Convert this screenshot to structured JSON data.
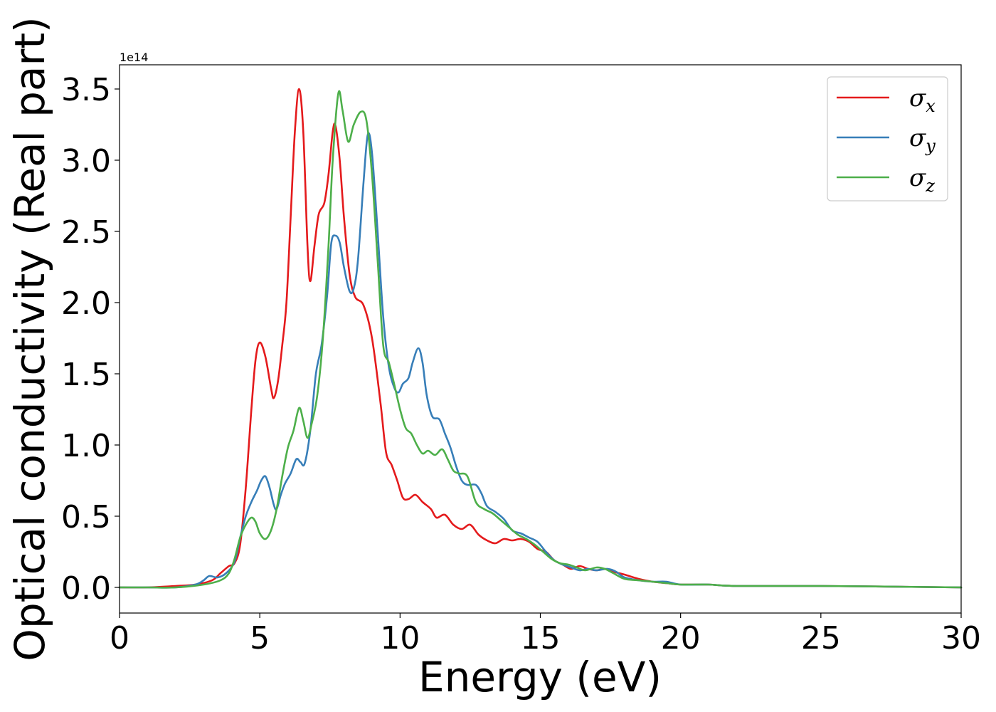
{
  "chart_data": {
    "type": "line",
    "title": "",
    "xlabel": "Energy (eV)",
    "ylabel": "Optical conductivity (Real part)",
    "y_offset_label": "1e14",
    "xlim": [
      0,
      30
    ],
    "ylim": [
      -0.18,
      3.67
    ],
    "x_ticks": [
      0,
      5,
      10,
      15,
      20,
      25,
      30
    ],
    "x_tick_labels": [
      "0",
      "5",
      "10",
      "15",
      "20",
      "25",
      "30"
    ],
    "y_ticks": [
      0.0,
      0.5,
      1.0,
      1.5,
      2.0,
      2.5,
      3.0,
      3.5
    ],
    "y_tick_labels": [
      "0.0",
      "0.5",
      "1.0",
      "1.5",
      "2.0",
      "2.5",
      "3.0",
      "3.5"
    ],
    "grid": false,
    "legend_position": "top-right",
    "series": [
      {
        "name": "σx",
        "legend_base": "σ",
        "legend_sub": "x",
        "color": "#e41a1c",
        "points": [
          [
            0,
            0
          ],
          [
            1,
            0
          ],
          [
            2,
            0.01
          ],
          [
            2.7,
            0.02
          ],
          [
            3.3,
            0.05
          ],
          [
            3.6,
            0.1
          ],
          [
            3.9,
            0.15
          ],
          [
            4.1,
            0.17
          ],
          [
            4.3,
            0.3
          ],
          [
            4.5,
            0.7
          ],
          [
            4.7,
            1.25
          ],
          [
            4.85,
            1.6
          ],
          [
            5.0,
            1.72
          ],
          [
            5.2,
            1.62
          ],
          [
            5.4,
            1.4
          ],
          [
            5.5,
            1.33
          ],
          [
            5.65,
            1.45
          ],
          [
            5.8,
            1.7
          ],
          [
            5.95,
            2.0
          ],
          [
            6.1,
            2.6
          ],
          [
            6.25,
            3.2
          ],
          [
            6.4,
            3.5
          ],
          [
            6.55,
            3.2
          ],
          [
            6.7,
            2.4
          ],
          [
            6.8,
            2.15
          ],
          [
            6.95,
            2.4
          ],
          [
            7.1,
            2.62
          ],
          [
            7.3,
            2.7
          ],
          [
            7.45,
            2.9
          ],
          [
            7.6,
            3.2
          ],
          [
            7.7,
            3.24
          ],
          [
            7.85,
            3.0
          ],
          [
            8.0,
            2.6
          ],
          [
            8.2,
            2.2
          ],
          [
            8.4,
            2.04
          ],
          [
            8.7,
            1.98
          ],
          [
            9.0,
            1.75
          ],
          [
            9.3,
            1.3
          ],
          [
            9.5,
            0.95
          ],
          [
            9.7,
            0.86
          ],
          [
            9.9,
            0.75
          ],
          [
            10.1,
            0.63
          ],
          [
            10.3,
            0.62
          ],
          [
            10.55,
            0.65
          ],
          [
            10.8,
            0.6
          ],
          [
            11.1,
            0.55
          ],
          [
            11.3,
            0.49
          ],
          [
            11.6,
            0.51
          ],
          [
            11.9,
            0.44
          ],
          [
            12.2,
            0.41
          ],
          [
            12.5,
            0.44
          ],
          [
            12.8,
            0.37
          ],
          [
            13.1,
            0.33
          ],
          [
            13.4,
            0.31
          ],
          [
            13.7,
            0.34
          ],
          [
            14.0,
            0.33
          ],
          [
            14.3,
            0.34
          ],
          [
            14.6,
            0.32
          ],
          [
            14.9,
            0.27
          ],
          [
            15.2,
            0.25
          ],
          [
            15.5,
            0.19
          ],
          [
            15.8,
            0.16
          ],
          [
            16.1,
            0.13
          ],
          [
            16.4,
            0.15
          ],
          [
            16.7,
            0.13
          ],
          [
            17.0,
            0.12
          ],
          [
            17.3,
            0.13
          ],
          [
            17.6,
            0.11
          ],
          [
            18.0,
            0.09
          ],
          [
            18.5,
            0.06
          ],
          [
            19.0,
            0.04
          ],
          [
            19.5,
            0.03
          ],
          [
            20,
            0.02
          ],
          [
            21,
            0.02
          ],
          [
            22,
            0.01
          ],
          [
            25,
            0.01
          ],
          [
            30,
            0
          ]
        ]
      },
      {
        "name": "σy",
        "legend_base": "σ",
        "legend_sub": "y",
        "color": "#377eb8",
        "points": [
          [
            0,
            0
          ],
          [
            1,
            0
          ],
          [
            2,
            0
          ],
          [
            2.7,
            0.02
          ],
          [
            3.0,
            0.05
          ],
          [
            3.2,
            0.08
          ],
          [
            3.5,
            0.07
          ],
          [
            3.8,
            0.1
          ],
          [
            4.1,
            0.18
          ],
          [
            4.3,
            0.35
          ],
          [
            4.5,
            0.5
          ],
          [
            4.7,
            0.6
          ],
          [
            4.9,
            0.68
          ],
          [
            5.05,
            0.75
          ],
          [
            5.2,
            0.78
          ],
          [
            5.35,
            0.7
          ],
          [
            5.5,
            0.58
          ],
          [
            5.6,
            0.55
          ],
          [
            5.75,
            0.65
          ],
          [
            5.9,
            0.73
          ],
          [
            6.1,
            0.8
          ],
          [
            6.3,
            0.9
          ],
          [
            6.45,
            0.88
          ],
          [
            6.6,
            0.87
          ],
          [
            6.8,
            1.1
          ],
          [
            7.0,
            1.5
          ],
          [
            7.2,
            1.7
          ],
          [
            7.4,
            2.05
          ],
          [
            7.55,
            2.42
          ],
          [
            7.7,
            2.47
          ],
          [
            7.85,
            2.42
          ],
          [
            8.0,
            2.25
          ],
          [
            8.2,
            2.08
          ],
          [
            8.35,
            2.1
          ],
          [
            8.5,
            2.3
          ],
          [
            8.7,
            2.85
          ],
          [
            8.85,
            3.18
          ],
          [
            9.0,
            3.05
          ],
          [
            9.2,
            2.5
          ],
          [
            9.4,
            1.9
          ],
          [
            9.6,
            1.55
          ],
          [
            9.8,
            1.4
          ],
          [
            9.95,
            1.37
          ],
          [
            10.1,
            1.43
          ],
          [
            10.3,
            1.47
          ],
          [
            10.45,
            1.58
          ],
          [
            10.65,
            1.68
          ],
          [
            10.8,
            1.58
          ],
          [
            10.95,
            1.35
          ],
          [
            11.15,
            1.2
          ],
          [
            11.4,
            1.18
          ],
          [
            11.6,
            1.08
          ],
          [
            11.8,
            0.98
          ],
          [
            12.0,
            0.85
          ],
          [
            12.2,
            0.75
          ],
          [
            12.4,
            0.72
          ],
          [
            12.7,
            0.72
          ],
          [
            12.9,
            0.66
          ],
          [
            13.1,
            0.57
          ],
          [
            13.4,
            0.53
          ],
          [
            13.7,
            0.48
          ],
          [
            14.0,
            0.4
          ],
          [
            14.3,
            0.38
          ],
          [
            14.6,
            0.35
          ],
          [
            14.9,
            0.32
          ],
          [
            15.2,
            0.25
          ],
          [
            15.5,
            0.19
          ],
          [
            15.8,
            0.16
          ],
          [
            16.1,
            0.14
          ],
          [
            16.4,
            0.12
          ],
          [
            16.7,
            0.13
          ],
          [
            17.0,
            0.12
          ],
          [
            17.4,
            0.13
          ],
          [
            17.7,
            0.11
          ],
          [
            18.0,
            0.07
          ],
          [
            18.5,
            0.05
          ],
          [
            19.0,
            0.04
          ],
          [
            19.5,
            0.04
          ],
          [
            20,
            0.02
          ],
          [
            21,
            0.02
          ],
          [
            22,
            0.01
          ],
          [
            25,
            0.01
          ],
          [
            30,
            0
          ]
        ]
      },
      {
        "name": "σz",
        "legend_base": "σ",
        "legend_sub": "z",
        "color": "#4daf4a",
        "points": [
          [
            0,
            0
          ],
          [
            1,
            0
          ],
          [
            2,
            0
          ],
          [
            3,
            0.02
          ],
          [
            3.6,
            0.05
          ],
          [
            3.9,
            0.1
          ],
          [
            4.1,
            0.2
          ],
          [
            4.3,
            0.35
          ],
          [
            4.5,
            0.44
          ],
          [
            4.7,
            0.49
          ],
          [
            4.85,
            0.46
          ],
          [
            5.0,
            0.38
          ],
          [
            5.2,
            0.34
          ],
          [
            5.4,
            0.4
          ],
          [
            5.6,
            0.55
          ],
          [
            5.8,
            0.78
          ],
          [
            6.0,
            0.98
          ],
          [
            6.2,
            1.1
          ],
          [
            6.4,
            1.26
          ],
          [
            6.55,
            1.17
          ],
          [
            6.7,
            1.05
          ],
          [
            6.85,
            1.15
          ],
          [
            7.05,
            1.35
          ],
          [
            7.25,
            1.75
          ],
          [
            7.45,
            2.4
          ],
          [
            7.6,
            3.0
          ],
          [
            7.8,
            3.47
          ],
          [
            7.95,
            3.35
          ],
          [
            8.15,
            3.13
          ],
          [
            8.35,
            3.25
          ],
          [
            8.6,
            3.34
          ],
          [
            8.8,
            3.28
          ],
          [
            9.0,
            2.9
          ],
          [
            9.2,
            2.3
          ],
          [
            9.4,
            1.7
          ],
          [
            9.6,
            1.58
          ],
          [
            9.8,
            1.42
          ],
          [
            10.0,
            1.25
          ],
          [
            10.2,
            1.12
          ],
          [
            10.4,
            1.08
          ],
          [
            10.6,
            1.0
          ],
          [
            10.8,
            0.94
          ],
          [
            11.0,
            0.96
          ],
          [
            11.25,
            0.93
          ],
          [
            11.5,
            0.97
          ],
          [
            11.7,
            0.9
          ],
          [
            11.9,
            0.82
          ],
          [
            12.1,
            0.8
          ],
          [
            12.4,
            0.78
          ],
          [
            12.7,
            0.6
          ],
          [
            13.0,
            0.55
          ],
          [
            13.3,
            0.52
          ],
          [
            13.6,
            0.47
          ],
          [
            13.9,
            0.42
          ],
          [
            14.2,
            0.37
          ],
          [
            14.5,
            0.34
          ],
          [
            14.8,
            0.3
          ],
          [
            15.1,
            0.25
          ],
          [
            15.4,
            0.2
          ],
          [
            15.7,
            0.17
          ],
          [
            16.0,
            0.16
          ],
          [
            16.3,
            0.14
          ],
          [
            16.6,
            0.12
          ],
          [
            17.0,
            0.14
          ],
          [
            17.3,
            0.13
          ],
          [
            17.6,
            0.1
          ],
          [
            18.0,
            0.06
          ],
          [
            18.5,
            0.05
          ],
          [
            19.0,
            0.04
          ],
          [
            19.5,
            0.03
          ],
          [
            20,
            0.02
          ],
          [
            21,
            0.02
          ],
          [
            22,
            0.01
          ],
          [
            25,
            0.01
          ],
          [
            30,
            0
          ]
        ]
      }
    ]
  }
}
